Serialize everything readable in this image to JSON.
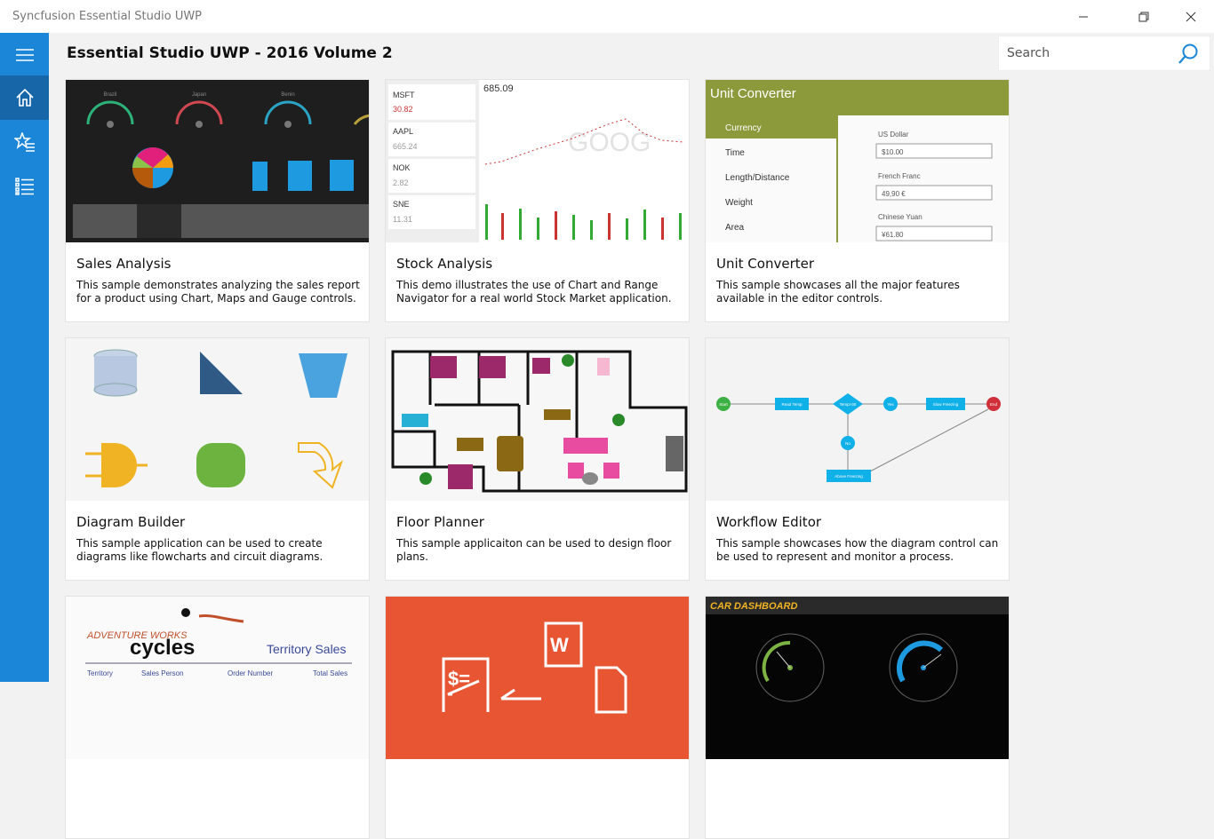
{
  "window": {
    "title": "Syncfusion Essential Studio UWP",
    "minimize_icon": "minimize-icon",
    "maximize_icon": "restore-icon",
    "close_icon": "close-icon"
  },
  "sidebar": {
    "accent": "#1b86d8",
    "selected": "#1767a8",
    "items": [
      {
        "icon": "hamburger-icon"
      },
      {
        "icon": "home-icon",
        "selected": true
      },
      {
        "icon": "favorites-icon"
      },
      {
        "icon": "list-icon"
      }
    ]
  },
  "header": {
    "title": "Essential Studio UWP - 2016 Volume 2"
  },
  "search": {
    "placeholder": "Search",
    "value": ""
  },
  "cards": [
    {
      "title": "Sales Analysis",
      "desc": "This sample demonstrates analyzing the sales report for a product using Chart, Maps and Gauge controls."
    },
    {
      "title": "Stock Analysis",
      "desc": "This demo illustrates the use of Chart and Range Navigator for a real world Stock Market application."
    },
    {
      "title": "Unit Converter",
      "desc": "This sample showcases all the major features available in the editor controls."
    },
    {
      "title": "Diagram Builder",
      "desc": "This sample application can be used to create diagrams like flowcharts and circuit diagrams."
    },
    {
      "title": "Floor Planner",
      "desc": "This sample applicaiton can be used to design floor plans."
    },
    {
      "title": "Workflow Editor",
      "desc": "This sample showcases how the diagram control can be used to represent and monitor a process."
    },
    {
      "title": "",
      "desc": ""
    },
    {
      "title": "",
      "desc": ""
    },
    {
      "title": "",
      "desc": ""
    }
  ],
  "thumbs": {
    "sales": {
      "gauges": [
        "Brazil",
        "Japan",
        "Benin"
      ]
    },
    "stock": {
      "tickers": [
        {
          "sym": "MSFT",
          "price": "30.82"
        },
        {
          "sym": "AAPL",
          "price": "665.24"
        },
        {
          "sym": "NOK",
          "price": "2.82"
        },
        {
          "sym": "SNE",
          "price": "11.31"
        }
      ],
      "last": "685.09",
      "watermark": "GOOG"
    },
    "unit": {
      "heading": "Unit Converter",
      "categories": [
        "Currency",
        "Time",
        "Length/Distance",
        "Weight",
        "Area"
      ],
      "fields": [
        {
          "label": "US Dollar",
          "value": "$10.00"
        },
        {
          "label": "French Franc",
          "value": "49,90 €"
        },
        {
          "label": "Chinese Yuan",
          "value": "¥61.80"
        }
      ]
    },
    "workflow": {
      "nodes": [
        "Start",
        "Read Temp",
        "Temp>30",
        "Yes",
        "Slow Freezing",
        "End",
        "No",
        "Above Freezing"
      ]
    },
    "report": {
      "brand_top": "ADVENTURE WORKS",
      "brand": "cycles",
      "title": "Territory Sales",
      "columns": [
        "Territory",
        "Sales Person",
        "Order Number",
        "Total Sales"
      ]
    },
    "dashboard": {
      "title": "CAR DASHBOARD"
    }
  }
}
